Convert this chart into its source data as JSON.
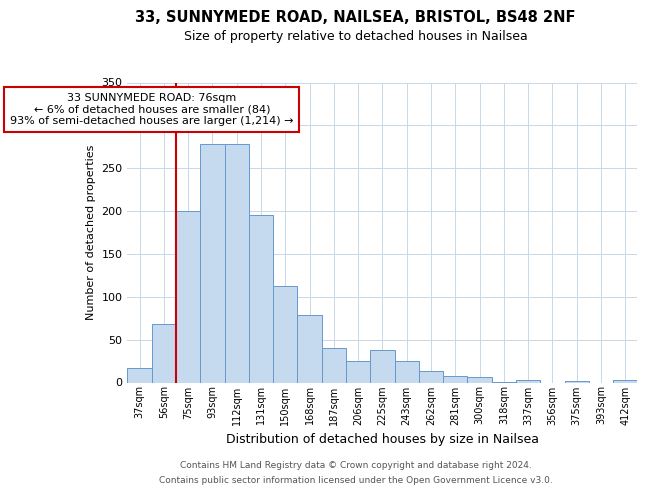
{
  "title": "33, SUNNYMEDE ROAD, NAILSEA, BRISTOL, BS48 2NF",
  "subtitle": "Size of property relative to detached houses in Nailsea",
  "xlabel": "Distribution of detached houses by size in Nailsea",
  "ylabel": "Number of detached properties",
  "bar_labels": [
    "37sqm",
    "56sqm",
    "75sqm",
    "93sqm",
    "112sqm",
    "131sqm",
    "150sqm",
    "168sqm",
    "187sqm",
    "206sqm",
    "225sqm",
    "243sqm",
    "262sqm",
    "281sqm",
    "300sqm",
    "318sqm",
    "337sqm",
    "356sqm",
    "375sqm",
    "393sqm",
    "412sqm"
  ],
  "bar_values": [
    17,
    68,
    200,
    278,
    278,
    195,
    113,
    79,
    40,
    25,
    38,
    25,
    13,
    8,
    6,
    1,
    3,
    0,
    2,
    0,
    3
  ],
  "bar_color": "#c5d9ef",
  "bar_edge_color": "#6699cc",
  "vline_color": "#cc0000",
  "ylim": [
    0,
    350
  ],
  "yticks": [
    0,
    50,
    100,
    150,
    200,
    250,
    300,
    350
  ],
  "annotation_text": "33 SUNNYMEDE ROAD: 76sqm\n← 6% of detached houses are smaller (84)\n93% of semi-detached houses are larger (1,214) →",
  "annotation_box_color": "#ffffff",
  "annotation_box_edge": "#cc0000",
  "footer1": "Contains HM Land Registry data © Crown copyright and database right 2024.",
  "footer2": "Contains public sector information licensed under the Open Government Licence v3.0.",
  "background_color": "#ffffff",
  "grid_color": "#c8d8e8"
}
